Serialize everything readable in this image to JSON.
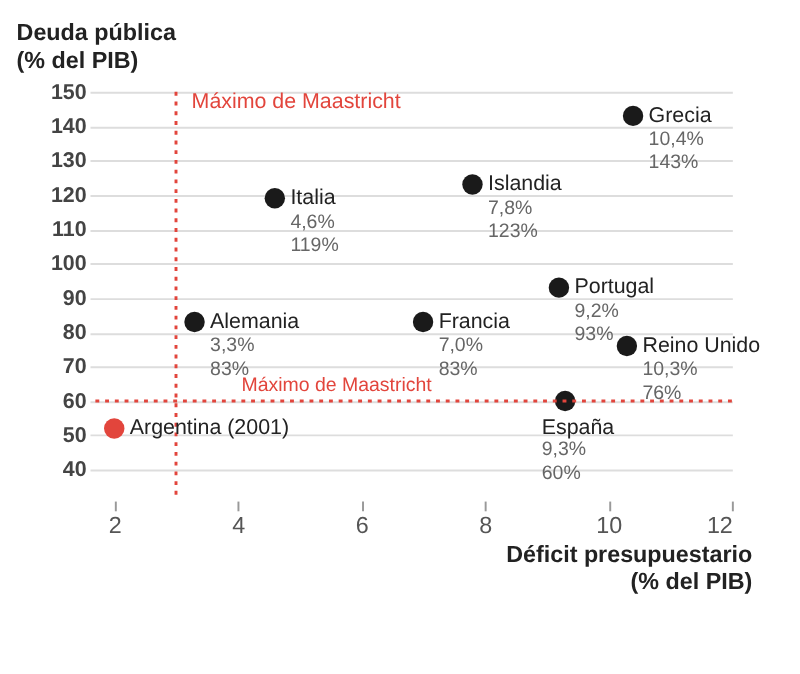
{
  "chart_data": {
    "type": "scatter",
    "xlabel": [
      "Déficit presupuestario",
      "(% del PIB)"
    ],
    "ylabel": [
      "Deuda pública",
      "(% del PIB)"
    ],
    "xlim": [
      1.6,
      12
    ],
    "xticks": [
      2,
      4,
      6,
      8,
      10,
      12
    ],
    "ylim": [
      31,
      150
    ],
    "yticks": [
      40,
      50,
      60,
      70,
      80,
      90,
      100,
      110,
      120,
      130,
      140,
      150
    ],
    "grid": "y",
    "marker": "circle",
    "series": [
      {
        "name": "Grecia",
        "color": "#1a1a1a",
        "x": [
          10.4
        ],
        "values": [
          143
        ],
        "value_labels": [
          "10,4%\n143%"
        ]
      },
      {
        "name": "Islandia",
        "color": "#1a1a1a",
        "x": [
          7.8
        ],
        "values": [
          123
        ],
        "value_labels": [
          "7,8%\n123%"
        ]
      },
      {
        "name": "Italia",
        "color": "#1a1a1a",
        "x": [
          4.6
        ],
        "values": [
          119
        ],
        "value_labels": [
          "4,6%\n119%"
        ]
      },
      {
        "name": "Portugal",
        "color": "#1a1a1a",
        "x": [
          9.2
        ],
        "values": [
          93
        ],
        "value_labels": [
          "9,2%\n93%"
        ]
      },
      {
        "name": "Alemania",
        "color": "#1a1a1a",
        "x": [
          3.3
        ],
        "values": [
          83
        ],
        "value_labels": [
          "3,3%\n83%"
        ]
      },
      {
        "name": "Francia",
        "color": "#1a1a1a",
        "x": [
          7.0
        ],
        "values": [
          83
        ],
        "value_labels": [
          "7,0%\n83%"
        ]
      },
      {
        "name": "Reino Unido",
        "color": "#1a1a1a",
        "x": [
          10.3
        ],
        "values": [
          76
        ],
        "value_labels": [
          "10,3%\n76%"
        ]
      },
      {
        "name": "España",
        "color": "#1a1a1a",
        "x": [
          9.3
        ],
        "values": [
          60
        ],
        "value_labels": [
          "9,3%\n60%"
        ]
      },
      {
        "name": "Argentina (2001)",
        "color": "#e2453c",
        "x": [
          2
        ],
        "values": [
          52
        ],
        "value_labels": [
          null
        ]
      }
    ],
    "ref_lines": [
      {
        "axis": "x",
        "value": 3,
        "label": "Máximo de Maastricht",
        "color": "#e2453c",
        "line_style": "dotted"
      },
      {
        "axis": "y",
        "value": 60,
        "label": "Máximo de Maastricht",
        "color": "#e2453c",
        "line_style": "dotted"
      }
    ]
  }
}
